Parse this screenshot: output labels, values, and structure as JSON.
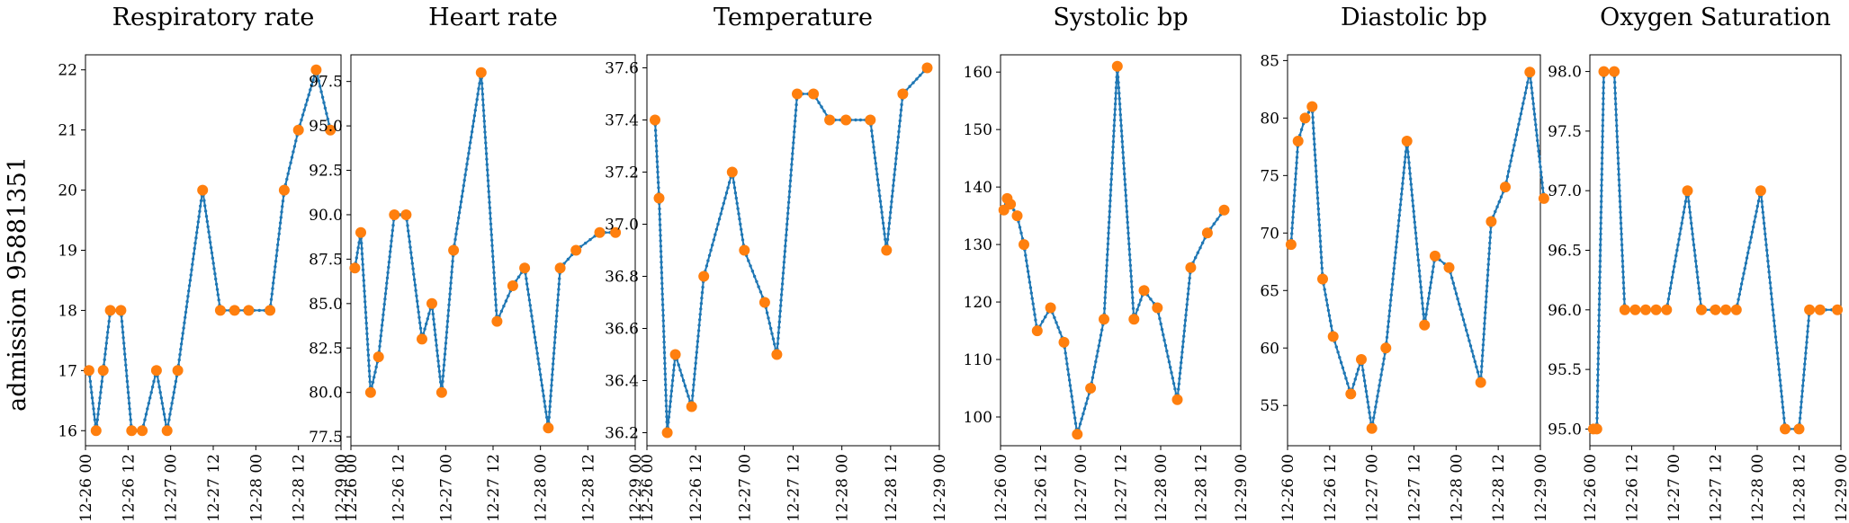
{
  "figure": {
    "row_label": "admission 95881351"
  },
  "chart_data": [
    {
      "type": "line",
      "title": "Respiratory rate",
      "x_tick_labels": [
        "12-26 00",
        "12-26 12",
        "12-27 00",
        "12-27 12",
        "12-28 00",
        "12-28 12",
        "12-29 00"
      ],
      "y_ticks": [
        16,
        17,
        18,
        19,
        20,
        21,
        22
      ],
      "y_tick_labels": [
        "16",
        "17",
        "18",
        "19",
        "20",
        "21",
        "22"
      ],
      "ylim": [
        15.75,
        22.25
      ],
      "x_hours_range": [
        0,
        72
      ],
      "series": [
        {
          "x": [
            1,
            3,
            5,
            7,
            10,
            13,
            16,
            20,
            23,
            26,
            33,
            38,
            42,
            46,
            52,
            56,
            60,
            65,
            69
          ],
          "y": [
            17,
            16,
            17,
            18,
            18,
            16,
            16,
            17,
            16,
            17,
            20,
            18,
            18,
            18,
            18,
            20,
            21,
            22,
            21
          ]
        }
      ]
    },
    {
      "type": "line",
      "title": "Heart rate",
      "x_tick_labels": [
        "12-26 00",
        "12-26 12",
        "12-27 00",
        "12-27 12",
        "12-28 00",
        "12-28 12",
        "12-29 00"
      ],
      "y_ticks": [
        77.5,
        80.0,
        82.5,
        85.0,
        87.5,
        90.0,
        92.5,
        95.0,
        97.5
      ],
      "y_tick_labels": [
        "77.5",
        "80.0",
        "82.5",
        "85.0",
        "87.5",
        "90.0",
        "92.5",
        "95.0",
        "97.5"
      ],
      "ylim": [
        77.0,
        99.0
      ],
      "x_hours_range": [
        0,
        72
      ],
      "series": [
        {
          "x": [
            1,
            2.5,
            5,
            7,
            11,
            14,
            18,
            20.5,
            23,
            26,
            33,
            37,
            41,
            44,
            50,
            53,
            57,
            63,
            67
          ],
          "y": [
            87,
            89,
            80,
            82,
            90,
            90,
            83,
            85,
            80,
            88,
            98,
            84,
            86,
            87,
            78,
            87,
            88,
            89,
            89
          ]
        }
      ]
    },
    {
      "type": "line",
      "title": "Temperature",
      "x_tick_labels": [
        "12-26 00",
        "12-26 12",
        "12-27 00",
        "12-27 12",
        "12-28 00",
        "12-28 12",
        "12-29 00"
      ],
      "y_ticks": [
        36.2,
        36.4,
        36.6,
        36.8,
        37.0,
        37.2,
        37.4,
        37.6
      ],
      "y_tick_labels": [
        "36.2",
        "36.4",
        "36.6",
        "36.8",
        "37.0",
        "37.2",
        "37.4",
        "37.6"
      ],
      "ylim": [
        36.15,
        37.65
      ],
      "x_hours_range": [
        0,
        72
      ],
      "series": [
        {
          "x": [
            2,
            3,
            5,
            7,
            11,
            14,
            21,
            24,
            29,
            32,
            37,
            41,
            45,
            49,
            55,
            59,
            63,
            69
          ],
          "y": [
            37.4,
            37.1,
            36.2,
            36.5,
            36.3,
            36.8,
            37.2,
            36.9,
            36.7,
            36.5,
            37.5,
            37.5,
            37.4,
            37.4,
            37.4,
            36.9,
            37.5,
            37.6
          ]
        }
      ]
    },
    {
      "type": "line",
      "title": "Systolic bp",
      "x_tick_labels": [
        "12-26 00",
        "12-26 12",
        "12-27 00",
        "12-27 12",
        "12-28 00",
        "12-28 12",
        "12-29 00"
      ],
      "y_ticks": [
        100,
        110,
        120,
        130,
        140,
        150,
        160
      ],
      "y_tick_labels": [
        "100",
        "110",
        "120",
        "130",
        "140",
        "150",
        "160"
      ],
      "ylim": [
        95.0,
        163.0
      ],
      "x_hours_range": [
        0,
        72
      ],
      "series": [
        {
          "x": [
            1,
            2,
            3,
            5,
            7,
            11,
            15,
            19,
            23,
            27,
            31,
            35,
            40,
            43,
            47,
            53,
            57,
            62,
            67
          ],
          "y": [
            136,
            138,
            137,
            135,
            130,
            115,
            119,
            113,
            97,
            105,
            117,
            161,
            117,
            122,
            119,
            103,
            126,
            132,
            136
          ]
        }
      ]
    },
    {
      "type": "line",
      "title": "Diastolic bp",
      "x_tick_labels": [
        "12-26 00",
        "12-26 12",
        "12-27 00",
        "12-27 12",
        "12-28 00",
        "12-28 12",
        "12-29 00"
      ],
      "y_ticks": [
        55,
        60,
        65,
        70,
        75,
        80,
        85
      ],
      "y_tick_labels": [
        "55",
        "60",
        "65",
        "70",
        "75",
        "80",
        "85"
      ],
      "ylim": [
        51.5,
        85.5
      ],
      "x_hours_range": [
        0,
        72
      ],
      "series": [
        {
          "x": [
            1,
            3,
            5,
            7,
            10,
            13,
            18,
            21,
            24,
            28,
            34,
            39,
            42,
            46,
            55,
            58,
            62,
            69,
            73
          ],
          "y": [
            69,
            78,
            80,
            81,
            66,
            61,
            56,
            59,
            53,
            60,
            78,
            62,
            68,
            67,
            57,
            71,
            74,
            84,
            73
          ]
        }
      ]
    },
    {
      "type": "line",
      "title": "Oxygen Saturation",
      "x_tick_labels": [
        "12-26 00",
        "12-26 12",
        "12-27 00",
        "12-27 12",
        "12-28 00",
        "12-28 12",
        "12-29 00"
      ],
      "y_ticks": [
        95.0,
        95.5,
        96.0,
        96.5,
        97.0,
        97.5,
        98.0
      ],
      "y_tick_labels": [
        "95.0",
        "95.5",
        "96.0",
        "96.5",
        "97.0",
        "97.5",
        "98.0"
      ],
      "ylim": [
        94.86,
        98.14
      ],
      "x_hours_range": [
        0,
        72
      ],
      "series": [
        {
          "x": [
            1,
            2,
            4,
            7,
            10,
            13,
            16,
            19,
            22,
            28,
            32,
            36,
            39,
            42,
            49,
            56,
            60,
            63,
            66,
            71
          ],
          "y": [
            95,
            95,
            98,
            98,
            96,
            96,
            96,
            96,
            96,
            97,
            96,
            96,
            96,
            96,
            97,
            95,
            95,
            96,
            96,
            96
          ]
        }
      ]
    }
  ]
}
